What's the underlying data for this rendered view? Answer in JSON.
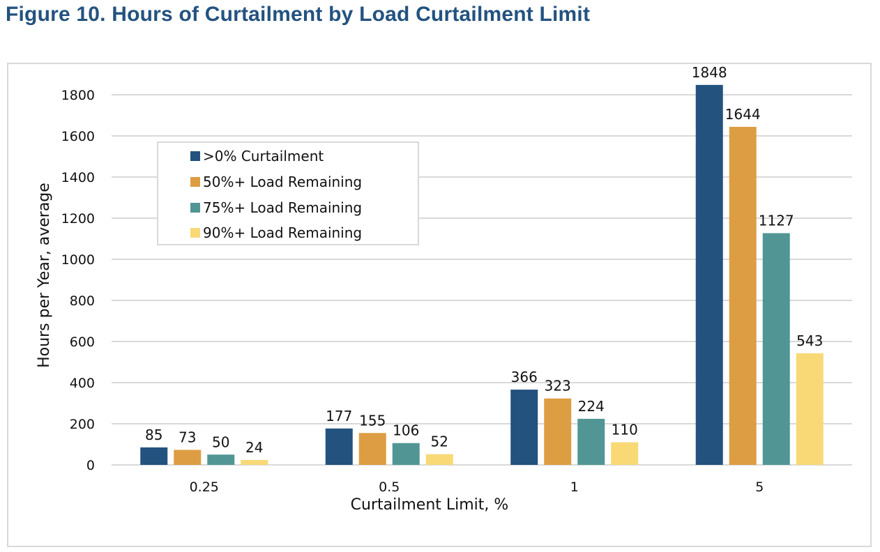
{
  "figure_title": "Figure 10. Hours of Curtailment by Load Curtailment Limit",
  "chart_data": {
    "type": "bar",
    "title": "Figure 10. Hours of Curtailment by Load Curtailment Limit",
    "xlabel": "Curtailment Limit, %",
    "ylabel": "Hours per Year, average",
    "categories": [
      "0.25",
      "0.5",
      "1",
      "5"
    ],
    "ylim": [
      0,
      1800
    ],
    "yticks": [
      0,
      200,
      400,
      600,
      800,
      1000,
      1200,
      1400,
      1600,
      1800
    ],
    "grid": true,
    "legend_position": "upper-left",
    "series": [
      {
        "name": ">0% Curtailment",
        "color": "#23527f",
        "values": [
          85,
          177,
          366,
          1848
        ]
      },
      {
        "name": "50%+ Load Remaining",
        "color": "#dd9d42",
        "values": [
          73,
          155,
          323,
          1644
        ]
      },
      {
        "name": "75%+ Load Remaining",
        "color": "#519694",
        "values": [
          50,
          106,
          224,
          1127
        ]
      },
      {
        "name": "90%+ Load Remaining",
        "color": "#f8d976",
        "values": [
          24,
          52,
          110,
          543
        ]
      }
    ],
    "colors": {
      "grid": "#d9d9d9",
      "text": "#111111",
      "title": "#23527f"
    }
  }
}
